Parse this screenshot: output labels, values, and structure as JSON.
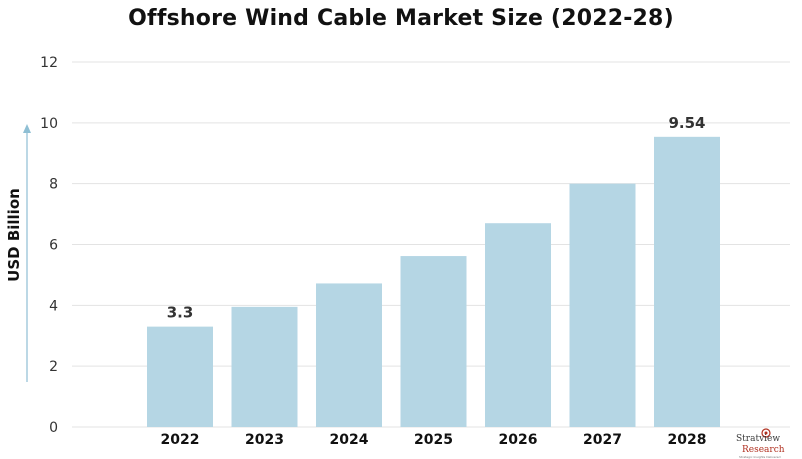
{
  "chart_data": {
    "type": "bar",
    "title": "Offshore Wind Cable Market Size (2022-28)",
    "ylabel": "USD Billion",
    "xlabel": "",
    "categories": [
      "2022",
      "2023",
      "2024",
      "2025",
      "2026",
      "2027",
      "2028"
    ],
    "values": [
      3.3,
      3.95,
      4.72,
      5.62,
      6.7,
      8.0,
      9.54
    ],
    "data_labels": [
      {
        "category": "2022",
        "text": "3.3"
      },
      {
        "category": "2028",
        "text": "9.54"
      }
    ],
    "yticks": [
      "0",
      "2",
      "4",
      "6",
      "8",
      "10",
      "12"
    ],
    "ylim": [
      0,
      12
    ],
    "grid": true,
    "bar_color": "#b5d6e4",
    "grid_color": "#e3e3e3",
    "arrow_color": "#8fbfd4"
  },
  "logo": {
    "name": "Stratview",
    "sub": "Research",
    "tagline": "Strategic Insights Delivered"
  }
}
